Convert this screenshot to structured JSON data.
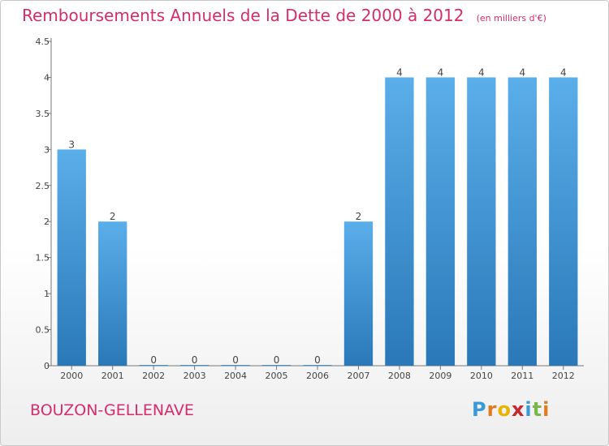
{
  "title": "Remboursements Annuels de la Dette de 2000 à 2012",
  "subtitle": "(en milliers d'€)",
  "commune": "BOUZON-GELLENAVE",
  "logo": {
    "letters": [
      "P",
      "r",
      "o",
      "x",
      "i",
      "t",
      "i"
    ],
    "colors": [
      "#3a9ad9",
      "#e07b20",
      "#e8b400",
      "#c6262e",
      "#3a9ad9",
      "#7ab648",
      "#e07b20"
    ]
  },
  "colors": {
    "bar_light": "#5aaeea",
    "bar_dark": "#2a78b8",
    "title": "#d42d6a"
  },
  "chart_data": {
    "type": "bar",
    "categories": [
      "2000",
      "2001",
      "2002",
      "2003",
      "2004",
      "2005",
      "2006",
      "2007",
      "2008",
      "2009",
      "2010",
      "2011",
      "2012"
    ],
    "values": [
      3,
      2,
      0,
      0,
      0,
      0,
      0,
      2,
      4,
      4,
      4,
      4,
      4
    ],
    "data_labels": [
      "3",
      "2",
      "0",
      "0",
      "0",
      "0",
      "0",
      "2",
      "4",
      "4",
      "4",
      "4",
      "4"
    ],
    "yticks": [
      "0",
      "0.5",
      "1",
      "1.5",
      "2",
      "2.5",
      "3",
      "3.5",
      "4",
      "4.5"
    ],
    "ylim": [
      0,
      4.5
    ],
    "grid": false,
    "legend": "none"
  }
}
